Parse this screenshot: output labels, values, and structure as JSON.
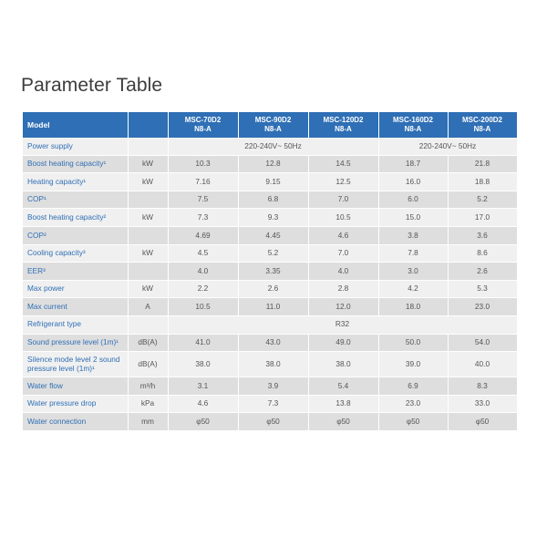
{
  "title": "Parameter Table",
  "table": {
    "model_header": "Model",
    "models": [
      {
        "line1": "MSC-70D2",
        "line2": "N8-A"
      },
      {
        "line1": "MSC-90D2",
        "line2": "N8-A"
      },
      {
        "line1": "MSC-120D2",
        "line2": "N8-A"
      },
      {
        "line1": "MSC-160D2",
        "line2": "N8-A"
      },
      {
        "line1": "MSC-200D2",
        "line2": "N8-A"
      }
    ],
    "rows": [
      {
        "param": "Power supply",
        "unit": "",
        "merged": [
          {
            "span": 3,
            "value": "220-240V~ 50Hz"
          },
          {
            "span": 2,
            "value": "220-240V~ 50Hz"
          }
        ]
      },
      {
        "param": "Boost heating capacity¹",
        "unit": "kW",
        "values": [
          "10.3",
          "12.8",
          "14.5",
          "18.7",
          "21.8"
        ]
      },
      {
        "param": "Heating capacity¹",
        "unit": "kW",
        "values": [
          "7.16",
          "9.15",
          "12.5",
          "16.0",
          "18.8"
        ]
      },
      {
        "param": "COP¹",
        "unit": "",
        "values": [
          "7.5",
          "6.8",
          "7.0",
          "6.0",
          "5.2"
        ]
      },
      {
        "param": "Boost heating capacity²",
        "unit": "kW",
        "values": [
          "7.3",
          "9.3",
          "10.5",
          "15.0",
          "17.0"
        ]
      },
      {
        "param": "COP²",
        "unit": "",
        "values": [
          "4.69",
          "4.45",
          "4.6",
          "3.8",
          "3.6"
        ]
      },
      {
        "param": "Cooling capacity³",
        "unit": "kW",
        "values": [
          "4.5",
          "5.2",
          "7.0",
          "7.8",
          "8.6"
        ]
      },
      {
        "param": "EER³",
        "unit": "",
        "values": [
          "4.0",
          "3.35",
          "4.0",
          "3.0",
          "2.6"
        ]
      },
      {
        "param": "Max power",
        "unit": "kW",
        "values": [
          "2.2",
          "2.6",
          "2.8",
          "4.2",
          "5.3"
        ]
      },
      {
        "param": "Max current",
        "unit": "A",
        "values": [
          "10.5",
          "11.0",
          "12.0",
          "18.0",
          "23.0"
        ]
      },
      {
        "param": "Refrigerant type",
        "unit": "",
        "merged": [
          {
            "span": 5,
            "value": "R32"
          }
        ]
      },
      {
        "param": "Sound pressure level (1m)¹",
        "unit": "dB(A)",
        "values": [
          "41.0",
          "43.0",
          "49.0",
          "50.0",
          "54.0"
        ]
      },
      {
        "param": "Silence mode level 2 sound pressure level (1m)¹",
        "unit": "dB(A)",
        "values": [
          "38.0",
          "38.0",
          "38.0",
          "39.0",
          "40.0"
        ],
        "tall": true
      },
      {
        "param": "Water flow",
        "unit": "m³/h",
        "values": [
          "3.1",
          "3.9",
          "5.4",
          "6.9",
          "8.3"
        ]
      },
      {
        "param": "Water pressure drop",
        "unit": "kPa",
        "values": [
          "4.6",
          "7.3",
          "13.8",
          "23.0",
          "33.0"
        ]
      },
      {
        "param": "Water connection",
        "unit": "mm",
        "values": [
          "φ50",
          "φ50",
          "φ50",
          "φ50",
          "φ50"
        ]
      }
    ]
  }
}
